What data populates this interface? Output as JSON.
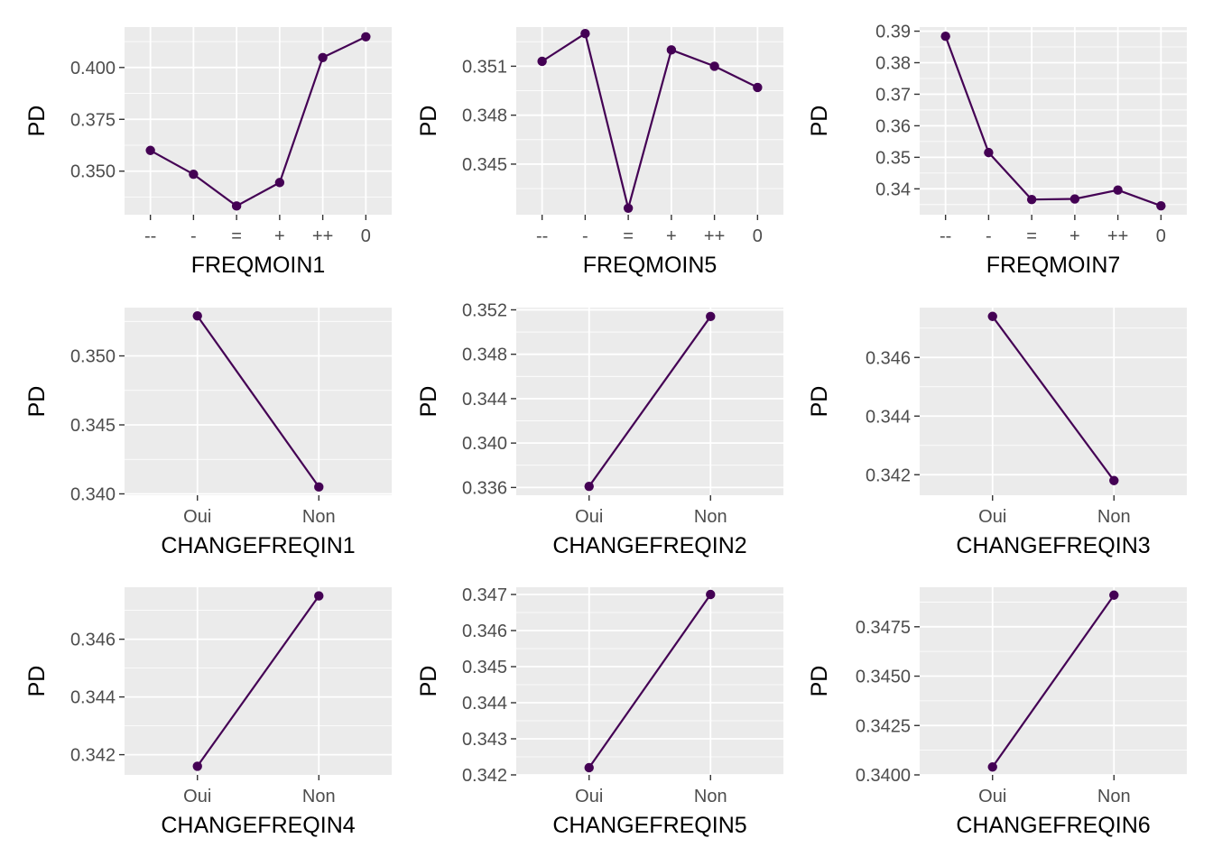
{
  "style": {
    "panel_background": "#ebebeb",
    "grid_color": "#ffffff",
    "line_color": "#440154",
    "text_color": "#4d4d4d",
    "title_color": "#000000"
  },
  "chart_data": [
    {
      "type": "line",
      "xlabel": "FREQMOIN1",
      "ylabel": "PD",
      "categories": [
        "--",
        "-",
        "=",
        "+",
        "++",
        "0"
      ],
      "values": [
        0.36,
        0.3485,
        0.3332,
        0.3445,
        0.4048,
        0.4148
      ],
      "ylim": [
        0.329,
        0.4195
      ],
      "yticks": [
        0.35,
        0.375,
        0.4
      ],
      "ytick_labels": [
        "0.350",
        "0.375",
        "0.400"
      ]
    },
    {
      "type": "line",
      "xlabel": "FREQMOIN5",
      "ylabel": "PD",
      "categories": [
        "--",
        "-",
        "=",
        "+",
        "++",
        "0"
      ],
      "values": [
        0.3513,
        0.353,
        0.3423,
        0.352,
        0.351,
        0.3497
      ],
      "ylim": [
        0.3419,
        0.3534
      ],
      "yticks": [
        0.345,
        0.348,
        0.351
      ],
      "ytick_labels": [
        "0.345",
        "0.348",
        "0.351"
      ]
    },
    {
      "type": "line",
      "xlabel": "FREQMOIN7",
      "ylabel": "PD",
      "categories": [
        "--",
        "-",
        "=",
        "+",
        "++",
        "0"
      ],
      "values": [
        0.3884,
        0.3515,
        0.3366,
        0.3368,
        0.3396,
        0.3346
      ],
      "ylim": [
        0.3318,
        0.3913
      ],
      "yticks": [
        0.34,
        0.35,
        0.36,
        0.37,
        0.38,
        0.39
      ],
      "ytick_labels": [
        "0.34",
        "0.35",
        "0.36",
        "0.37",
        "0.38",
        "0.39"
      ]
    },
    {
      "type": "line",
      "xlabel": "CHANGEFREQIN1",
      "ylabel": "PD",
      "categories": [
        "Oui",
        "Non"
      ],
      "values": [
        0.3529,
        0.3405
      ],
      "ylim": [
        0.3399,
        0.3535
      ],
      "yticks": [
        0.34,
        0.345,
        0.35
      ],
      "ytick_labels": [
        "0.340",
        "0.345",
        "0.350"
      ]
    },
    {
      "type": "line",
      "xlabel": "CHANGEFREQIN2",
      "ylabel": "PD",
      "categories": [
        "Oui",
        "Non"
      ],
      "values": [
        0.3361,
        0.3514
      ],
      "ylim": [
        0.3353,
        0.3522
      ],
      "yticks": [
        0.336,
        0.34,
        0.344,
        0.348,
        0.352
      ],
      "ytick_labels": [
        "0.336",
        "0.340",
        "0.344",
        "0.348",
        "0.352"
      ]
    },
    {
      "type": "line",
      "xlabel": "CHANGEFREQIN3",
      "ylabel": "PD",
      "categories": [
        "Oui",
        "Non"
      ],
      "values": [
        0.3474,
        0.3418
      ],
      "ylim": [
        0.3413,
        0.3477
      ],
      "yticks": [
        0.342,
        0.344,
        0.346
      ],
      "ytick_labels": [
        "0.342",
        "0.344",
        "0.346"
      ]
    },
    {
      "type": "line",
      "xlabel": "CHANGEFREQIN4",
      "ylabel": "PD",
      "categories": [
        "Oui",
        "Non"
      ],
      "values": [
        0.3416,
        0.3475
      ],
      "ylim": [
        0.3413,
        0.3478
      ],
      "yticks": [
        0.342,
        0.344,
        0.346
      ],
      "ytick_labels": [
        "0.342",
        "0.344",
        "0.346"
      ]
    },
    {
      "type": "line",
      "xlabel": "CHANGEFREQIN5",
      "ylabel": "PD",
      "categories": [
        "Oui",
        "Non"
      ],
      "values": [
        0.3422,
        0.347
      ],
      "ylim": [
        0.342,
        0.3472
      ],
      "yticks": [
        0.342,
        0.343,
        0.344,
        0.345,
        0.346,
        0.347
      ],
      "ytick_labels": [
        "0.342",
        "0.343",
        "0.344",
        "0.345",
        "0.346",
        "0.347"
      ]
    },
    {
      "type": "line",
      "xlabel": "CHANGEFREQIN6",
      "ylabel": "PD",
      "categories": [
        "Oui",
        "Non"
      ],
      "values": [
        0.3404,
        0.3491
      ],
      "ylim": [
        0.34,
        0.3495
      ],
      "yticks": [
        0.34,
        0.3425,
        0.345,
        0.3475
      ],
      "ytick_labels": [
        "0.3400",
        "0.3425",
        "0.3450",
        "0.3475"
      ]
    }
  ]
}
